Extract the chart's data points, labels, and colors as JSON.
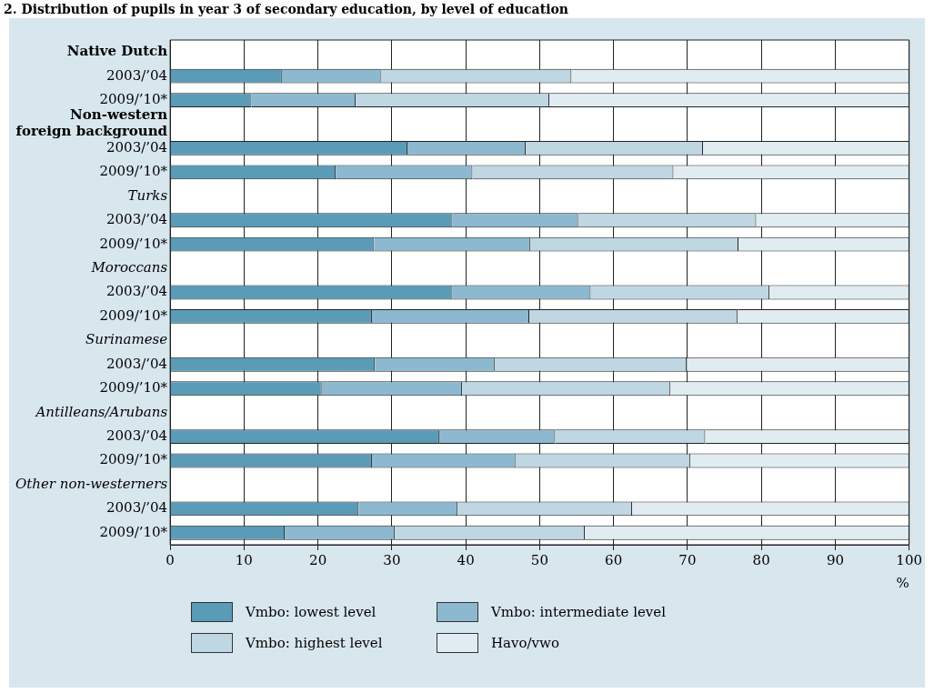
{
  "chart_data": {
    "type": "bar",
    "orientation": "horizontal",
    "stacked": true,
    "title": "2. Distribution of pupils in year 3 of secondary education, by level of education",
    "xlabel": "%",
    "categories": [
      "Native Dutch",
      "2003/’04",
      "2009/’10*",
      "Non-western foreign background",
      "2003/’04",
      "2009/’10*",
      "Turks",
      "2003/’04",
      "2009/’10*",
      "Moroccans",
      "2003/’04",
      "2009/’10*",
      "Surinamese",
      "2003/’04",
      "2009/’10*",
      "Antilleans/Arubans",
      "2003/’04",
      "2009/’10*",
      "Other non-westerners",
      "2003/’04",
      "2009/’10*"
    ],
    "series": [
      {
        "name": "Vmbo: lowest level",
        "color": "#5a9bb8",
        "values": [
          null,
          15.1,
          11.0,
          null,
          32.1,
          22.4,
          null,
          38.2,
          27.6,
          null,
          38.2,
          27.3,
          null,
          27.7,
          20.5,
          null,
          36.4,
          27.3,
          null,
          25.5,
          15.5
        ]
      },
      {
        "name": "Vmbo: intermediate level",
        "color": "#8cb9cf",
        "values": [
          null,
          13.4,
          14.1,
          null,
          16.0,
          18.5,
          null,
          17.0,
          21.1,
          null,
          18.7,
          21.3,
          null,
          16.2,
          19.0,
          null,
          15.7,
          19.5,
          null,
          13.4,
          14.9
        ]
      },
      {
        "name": "Vmbo: highest level",
        "color": "#bfd7e3",
        "values": [
          null,
          25.8,
          26.2,
          null,
          24.0,
          27.2,
          null,
          24.1,
          28.2,
          null,
          24.2,
          28.2,
          null,
          26.0,
          28.2,
          null,
          20.3,
          23.6,
          null,
          23.6,
          25.7
        ]
      },
      {
        "name": "Havo/vwo",
        "color": "#e1ecf2",
        "values": [
          null,
          45.7,
          48.7,
          null,
          27.9,
          31.9,
          null,
          20.7,
          23.1,
          null,
          18.9,
          23.2,
          null,
          30.1,
          32.3,
          null,
          27.6,
          29.6,
          null,
          37.5,
          43.9
        ]
      }
    ],
    "xlim": [
      0,
      100
    ],
    "xticks": [
      0,
      10,
      20,
      30,
      40,
      50,
      60,
      70,
      80,
      90,
      100
    ],
    "grid": "x",
    "legend": "bottom"
  }
}
